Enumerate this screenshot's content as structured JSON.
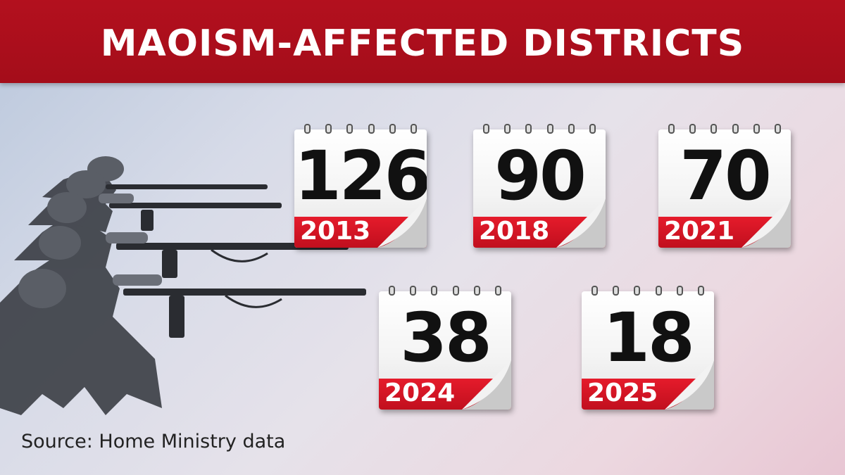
{
  "header": {
    "title": "MAOISM-AFFECTED DISTRICTS"
  },
  "source_text": "Source: Home Ministry data",
  "colors": {
    "banner_red": "#b3101e",
    "band_red": "#d5121f",
    "number_black": "#111111"
  },
  "chart_data": {
    "type": "table",
    "title": "MAOISM-AFFECTED DISTRICTS",
    "categories": [
      "2013",
      "2018",
      "2021",
      "2024",
      "2025"
    ],
    "values": [
      126,
      90,
      70,
      38,
      18
    ]
  },
  "calendars": [
    {
      "year": "2013",
      "value": "126"
    },
    {
      "year": "2018",
      "value": "90"
    },
    {
      "year": "2021",
      "value": "70"
    },
    {
      "year": "2024",
      "value": "38"
    },
    {
      "year": "2025",
      "value": "18"
    }
  ]
}
